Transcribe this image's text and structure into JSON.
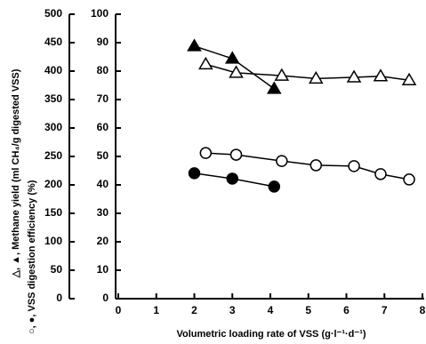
{
  "chart_data": {
    "type": "line",
    "x_label": "Volumetric loading rate of VSS (g·l⁻¹·d⁻¹)",
    "y_label": "△, ▲, Methane yield (ml CH₄/g digested VSS)",
    "y2_label": "○, ●, VSS digestion efficiency (%)",
    "xlim": [
      0,
      8
    ],
    "xticks": [
      0,
      1,
      2,
      3,
      4,
      5,
      6,
      7,
      8
    ],
    "ylim": [
      0,
      500
    ],
    "yticks": [
      0,
      50,
      100,
      150,
      200,
      250,
      300,
      350,
      400,
      450,
      500
    ],
    "y2lim": [
      0,
      100
    ],
    "y2ticks": [
      0,
      10,
      20,
      30,
      40,
      50,
      60,
      70,
      80,
      90,
      100
    ],
    "color": "#000000",
    "series": [
      {
        "marker": "triangle",
        "filled": true,
        "x": [
          2.0,
          3.0,
          4.1
        ],
        "values": [
          444,
          422,
          369
        ]
      },
      {
        "marker": "triangle",
        "filled": false,
        "x": [
          2.3,
          3.1,
          4.3,
          5.2,
          6.2,
          6.9,
          7.65
        ],
        "values": [
          412,
          397,
          392,
          387,
          389,
          391,
          384
        ]
      },
      {
        "marker": "circle",
        "filled": false,
        "axis": "y2",
        "x": [
          2.3,
          3.1,
          4.3,
          5.2,
          6.2,
          6.9,
          7.65
        ],
        "values": [
          51.2,
          50.6,
          48.4,
          46.9,
          46.6,
          43.8,
          41.9
        ]
      },
      {
        "marker": "circle",
        "filled": true,
        "axis": "y2",
        "x": [
          2.0,
          3.0,
          4.1
        ],
        "values": [
          44.1,
          42.2,
          39.4
        ]
      }
    ]
  }
}
